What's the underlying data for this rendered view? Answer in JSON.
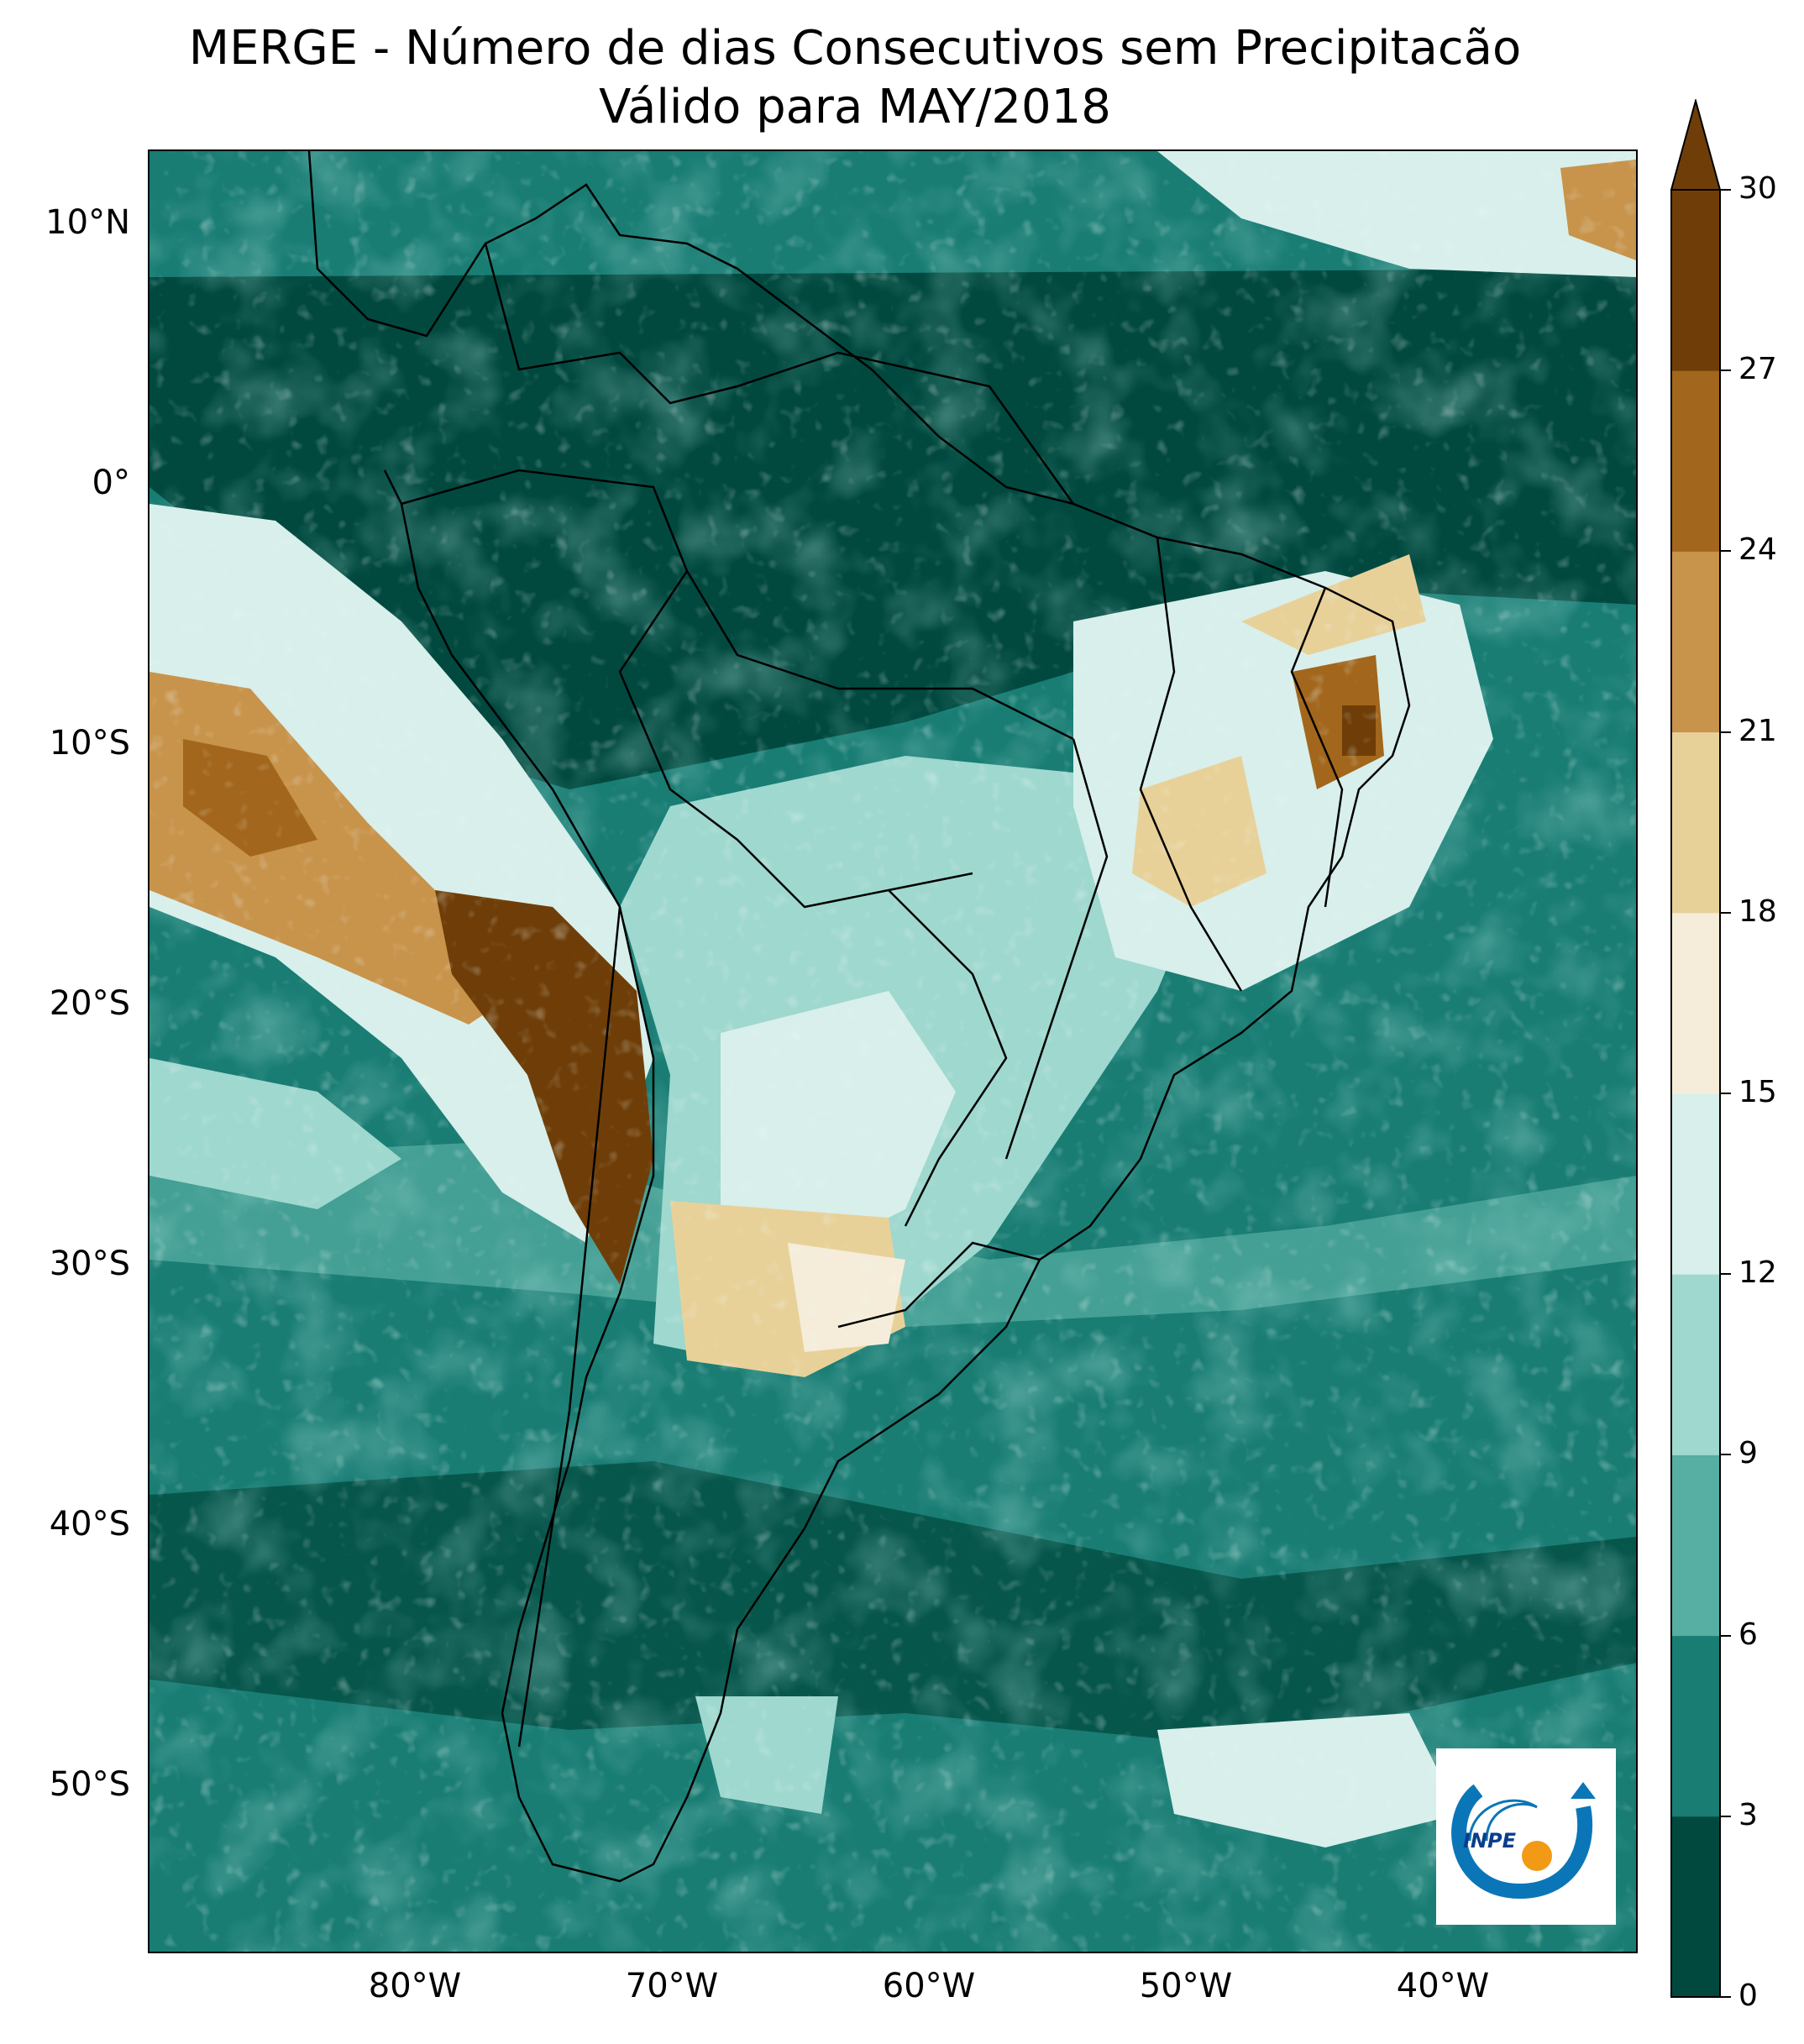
{
  "title": {
    "line1": "MERGE - Número de dias Consecutivos sem Precipitacão",
    "line2": "Válido para MAY/2018"
  },
  "map": {
    "region": "South America",
    "lat_labels": [
      "10°N",
      "0°",
      "10°S",
      "20°S",
      "30°S",
      "40°S",
      "50°S"
    ],
    "lon_labels": [
      "80°W",
      "70°W",
      "60°W",
      "50°W",
      "40°W"
    ],
    "lat_range": [
      -56,
      12.5
    ],
    "lon_range": [
      -90,
      -32
    ]
  },
  "colorbar": {
    "ticks": [
      "0",
      "3",
      "6",
      "9",
      "12",
      "15",
      "18",
      "21",
      "24",
      "27",
      "30"
    ],
    "colors": [
      "#01493f",
      "#197d74",
      "#57aea3",
      "#9fd8cf",
      "#d8efeb",
      "#f5edda",
      "#e8d199",
      "#c8934a",
      "#a2661c",
      "#6f3e08"
    ],
    "extend": "max"
  },
  "logo": {
    "text": "INPE",
    "colors": {
      "blue": "#0a76b8",
      "orange": "#f29a16"
    }
  }
}
